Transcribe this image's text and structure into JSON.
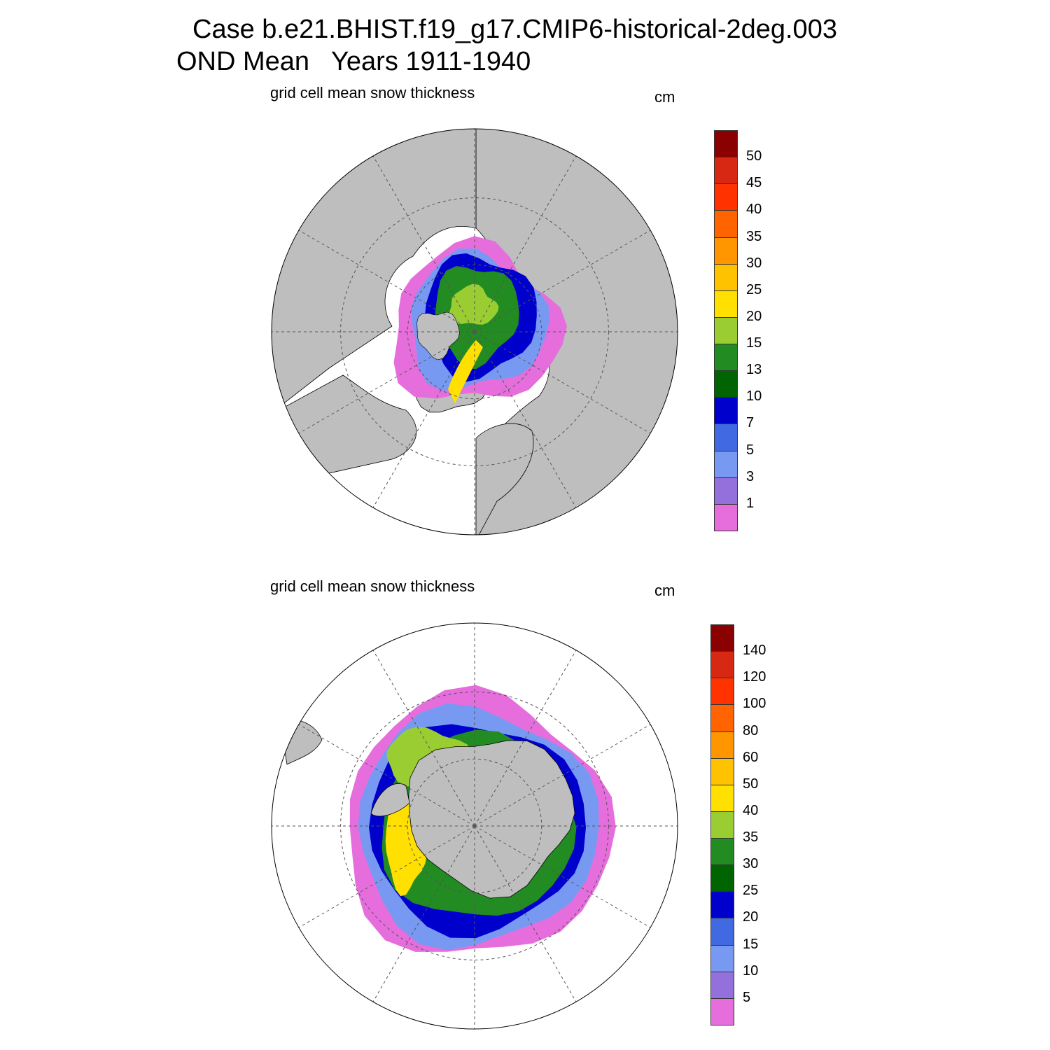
{
  "title": {
    "line1": "Case b.e21.BHIST.f19_g17.CMIP6-historical-2deg.003",
    "line2": "OND Mean   Years 1911-1940"
  },
  "panels": [
    {
      "id": "north",
      "label": "grid cell mean snow thickness",
      "units": "cm",
      "hemisphere": "north",
      "colorbar": {
        "colors": [
          "#e56edc",
          "#9370db",
          "#7899f2",
          "#4169e1",
          "#0000cd",
          "#006400",
          "#228b22",
          "#9acd32",
          "#ffe000",
          "#ffc200",
          "#ff9600",
          "#ff6400",
          "#ff3200",
          "#d72814",
          "#8b0000"
        ],
        "labels": [
          "1",
          "3",
          "5",
          "7",
          "10",
          "13",
          "15",
          "20",
          "25",
          "30",
          "35",
          "40",
          "45",
          "50"
        ]
      }
    },
    {
      "id": "south",
      "label": "grid cell mean snow thickness",
      "units": "cm",
      "hemisphere": "south",
      "colorbar": {
        "colors": [
          "#e56edc",
          "#9370db",
          "#7899f2",
          "#4169e1",
          "#0000cd",
          "#006400",
          "#228b22",
          "#9acd32",
          "#ffe000",
          "#ffc200",
          "#ff9600",
          "#ff6400",
          "#ff3200",
          "#d72814",
          "#8b0000"
        ],
        "labels": [
          "5",
          "10",
          "15",
          "20",
          "25",
          "30",
          "35",
          "40",
          "50",
          "60",
          "80",
          "100",
          "120",
          "140"
        ]
      }
    }
  ],
  "colors": {
    "land": "#bebebe",
    "ocean": "#ffffff",
    "grid": "#555555"
  }
}
